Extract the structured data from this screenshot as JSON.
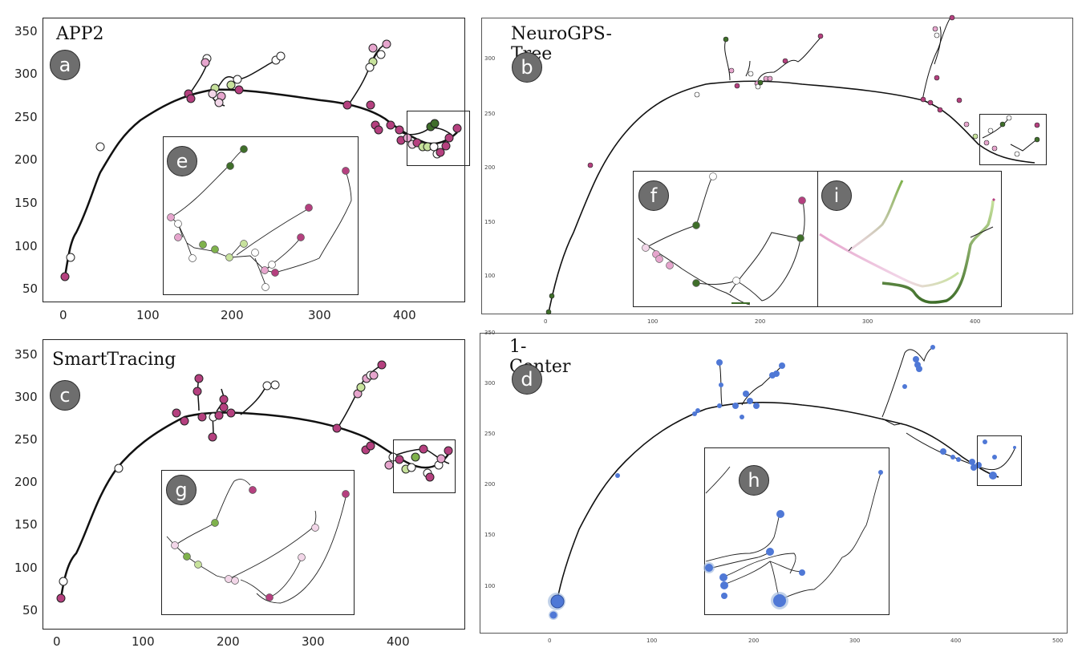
{
  "panels": {
    "a": {
      "title": "APP2",
      "badge": "a",
      "inset_badge": "e",
      "yticks": [
        "350",
        "300",
        "250",
        "200",
        "150",
        "100",
        "50"
      ],
      "xticks": [
        "0",
        "100",
        "200",
        "300",
        "400"
      ]
    },
    "b": {
      "title": "NeuroGPS-Tree",
      "badge": "b",
      "inset_badge_1": "f",
      "inset_badge_2": "i",
      "yticks": [
        "300",
        "250",
        "200",
        "150",
        "100"
      ],
      "xticks": [
        "0",
        "100",
        "200",
        "300",
        "400"
      ]
    },
    "c": {
      "title": "SmartTracing",
      "badge": "c",
      "inset_badge": "g",
      "yticks": [
        "350",
        "300",
        "250",
        "200",
        "150",
        "100",
        "50"
      ],
      "xticks": [
        "0",
        "100",
        "200",
        "300",
        "400"
      ]
    },
    "d": {
      "title": "1-Center",
      "badge": "d",
      "inset_badge": "h",
      "yticks": [
        "350",
        "300",
        "250",
        "200",
        "150",
        "100"
      ],
      "xticks": [
        "0",
        "100",
        "200",
        "300",
        "400",
        "500"
      ]
    }
  },
  "colors": {
    "magenta": "#b5407f",
    "pink": "#e6a5cd",
    "light_pink": "#f2d6e8",
    "dark_green": "#3f6e2a",
    "light_green": "#c7e29c",
    "mid_green": "#7fb24c",
    "blue": "#4f78d6",
    "blue_halo": "#a8bfe0"
  }
}
